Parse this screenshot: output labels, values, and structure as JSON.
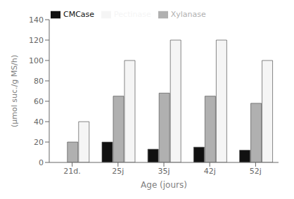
{
  "chart_data": {
    "type": "bar",
    "categories": [
      "21d.",
      "25j",
      "35j",
      "42j",
      "52j"
    ],
    "series": [
      {
        "name": "CMCase",
        "color": "#111111",
        "values": [
          0,
          20,
          13,
          15,
          12
        ]
      },
      {
        "name": "Xylanase",
        "color": "#b0b0b0",
        "values": [
          20,
          65,
          68,
          65,
          58
        ]
      },
      {
        "name": "Pectinase",
        "color": "#f5f5f5",
        "values": [
          40,
          100,
          120,
          120,
          100
        ]
      }
    ],
    "xlabel": "Age (jours)",
    "ylabel": "(µmol suc./g MS/h)",
    "ylim": [
      0,
      140
    ],
    "yticks": [
      0,
      20,
      40,
      60,
      80,
      100,
      120,
      140
    ],
    "legend": "upper left",
    "grid": false
  }
}
